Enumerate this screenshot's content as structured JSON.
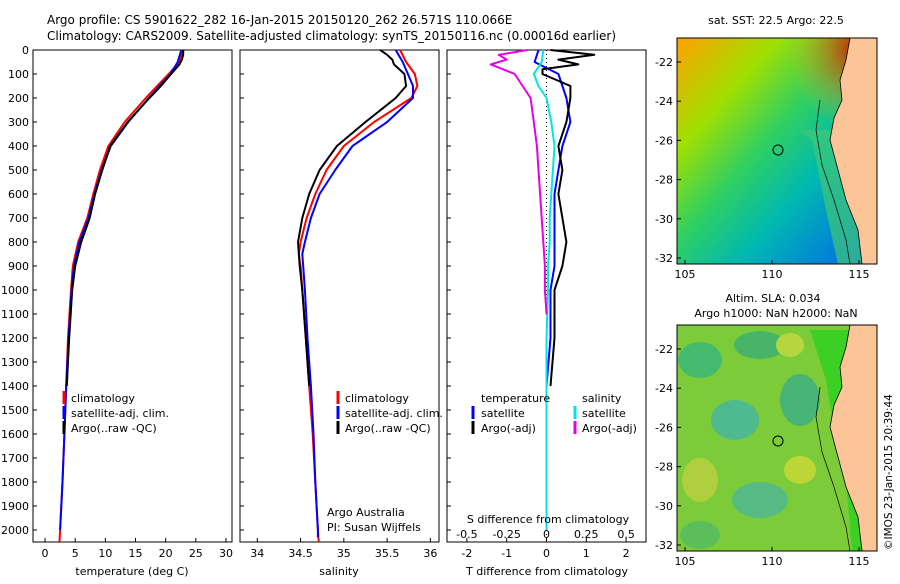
{
  "header": {
    "line1": "Argo profile: CS 5901622_282 16-Jan-2015 20150120_262 26.571S 110.066E",
    "line2": "Climatology: CARS2009. Satellite-adjusted climatology: synTS_20150116.nc (0.00016d earlier)"
  },
  "credit": "©IMOS 23-Jan-2015 20:39:44",
  "colors": {
    "climatology": "#ff0000",
    "satellite": "#0000ff",
    "argo": "#000000",
    "sal_satellite": "#00e5e5",
    "sal_argo": "#e600e6",
    "land": "#fbc597"
  },
  "legend": {
    "climatology": "climatology",
    "satellite_adj": "satellite-adj. clim.",
    "argo_raw": "Argo(..raw -QC)",
    "temperature_head": "temperature",
    "salinity_head": "salinity",
    "satellite": "satellite",
    "argo_adj": "Argo(-adj)"
  },
  "notes": {
    "institution": "Argo Australia",
    "pi": "PI: Susan Wijffels"
  },
  "maps": {
    "sst_title": "sat. SST: 22.5  Argo: 22.5",
    "sla_title_1": "Altim. SLA: 0.034",
    "sla_title_2": "Argo h1000: NaN h2000: NaN",
    "lon_ticks": [
      "105",
      "110",
      "115"
    ],
    "lat_ticks": [
      "-22",
      "-24",
      "-26",
      "-28",
      "-30",
      "-32"
    ],
    "profile_location": {
      "lon": 110.066,
      "lat": -26.571
    }
  },
  "chart_data": [
    {
      "type": "line",
      "panel": "temperature",
      "xlabel": "temperature (deg C)",
      "xlim": [
        -2,
        31
      ],
      "xticks": [
        "0",
        "5",
        "10",
        "15",
        "20",
        "25",
        "30"
      ],
      "ylim": [
        0,
        2050
      ],
      "yticks": [
        "0",
        "100",
        "200",
        "300",
        "400",
        "500",
        "600",
        "700",
        "800",
        "900",
        "1000",
        "1100",
        "1200",
        "1300",
        "1400",
        "1500",
        "1600",
        "1700",
        "1800",
        "1900",
        "2000"
      ],
      "grid": false,
      "series": [
        {
          "name": "climatology",
          "color": "#ff0000",
          "depth": [
            0,
            50,
            100,
            150,
            200,
            300,
            400,
            500,
            600,
            700,
            800,
            900,
            1000,
            1200,
            1400,
            1600,
            1800,
            2000,
            2050
          ],
          "values": [
            22.8,
            22.3,
            20.5,
            18.6,
            16.7,
            13.2,
            10.5,
            9.1,
            8.0,
            7.0,
            5.5,
            4.6,
            4.3,
            3.8,
            3.5,
            3.2,
            2.9,
            2.5,
            2.4
          ]
        },
        {
          "name": "satellite-adj. clim.",
          "color": "#0000ff",
          "depth": [
            0,
            50,
            100,
            150,
            200,
            300,
            400,
            500,
            600,
            700,
            800,
            900,
            1000,
            1200,
            1400,
            1600,
            1800,
            2000
          ],
          "values": [
            22.6,
            22.0,
            20.8,
            19.0,
            17.2,
            13.8,
            10.9,
            9.4,
            8.2,
            7.2,
            5.7,
            4.8,
            4.4,
            3.9,
            3.5,
            3.2,
            2.9,
            2.5
          ]
        },
        {
          "name": "Argo(..raw -QC)",
          "color": "#000000",
          "depth": [
            0,
            20,
            40,
            60,
            100,
            150,
            200,
            300,
            400,
            500,
            600,
            700,
            800,
            900,
            1000,
            1200,
            1400
          ],
          "values": [
            22.9,
            22.9,
            22.7,
            22.3,
            20.9,
            19.2,
            17.3,
            13.7,
            10.8,
            9.5,
            8.3,
            7.4,
            6.0,
            5.0,
            4.5,
            4.0,
            3.6
          ]
        }
      ]
    },
    {
      "type": "line",
      "panel": "salinity",
      "xlabel": "salinity",
      "xlim": [
        33.8,
        36.1
      ],
      "xticks": [
        "34",
        "34.5",
        "35",
        "35.5",
        "36"
      ],
      "ylim": [
        0,
        2050
      ],
      "grid": false,
      "series": [
        {
          "name": "climatology",
          "color": "#ff0000",
          "depth": [
            0,
            50,
            100,
            150,
            200,
            300,
            400,
            500,
            600,
            700,
            800,
            850,
            900,
            1000,
            1200,
            1400,
            1600,
            1800,
            2000,
            2050
          ],
          "values": [
            35.65,
            35.72,
            35.82,
            35.85,
            35.78,
            35.35,
            35.0,
            34.8,
            34.67,
            34.57,
            34.5,
            34.48,
            34.5,
            34.52,
            34.56,
            34.6,
            34.64,
            34.67,
            34.7,
            34.71
          ]
        },
        {
          "name": "satellite-adj. clim.",
          "color": "#0000ff",
          "depth": [
            0,
            50,
            100,
            150,
            200,
            300,
            400,
            500,
            600,
            700,
            800,
            850,
            900,
            1000,
            1200,
            1400,
            1600,
            1800,
            2000,
            2030
          ],
          "values": [
            35.6,
            35.68,
            35.74,
            35.8,
            35.8,
            35.5,
            35.1,
            34.9,
            34.72,
            34.62,
            34.55,
            34.52,
            34.53,
            34.55,
            34.58,
            34.62,
            34.65,
            34.67,
            34.7,
            34.7
          ]
        },
        {
          "name": "Argo(..raw -QC)",
          "color": "#000000",
          "depth": [
            0,
            20,
            40,
            60,
            100,
            150,
            200,
            300,
            400,
            500,
            600,
            700,
            800,
            900,
            1000,
            1200,
            1400
          ],
          "values": [
            35.42,
            35.5,
            35.56,
            35.58,
            35.7,
            35.72,
            35.6,
            35.25,
            34.92,
            34.72,
            34.6,
            34.52,
            34.47,
            34.49,
            34.52,
            34.56,
            34.6
          ]
        }
      ]
    },
    {
      "type": "line",
      "panel": "differences",
      "xlabel": "T difference from climatology",
      "xlabel_top": "S difference from climatology",
      "xlim": [
        -2.5,
        2.5
      ],
      "xticks": [
        "-2",
        "-1",
        "0",
        "1",
        "2"
      ],
      "xticks_top": [
        "-0.5",
        "-0.25",
        "0",
        "0.25",
        "0.5"
      ],
      "ylim": [
        0,
        2050
      ],
      "series": [
        {
          "name": "temperature satellite",
          "color": "#0000ff",
          "depth": [
            0,
            50,
            100,
            150,
            200,
            300,
            400,
            500,
            600,
            700,
            800,
            900,
            1000,
            1200,
            1400,
            1600,
            1800,
            2000
          ],
          "values": [
            -0.2,
            -0.3,
            0.3,
            0.4,
            0.5,
            0.6,
            0.4,
            0.3,
            0.2,
            0.2,
            0.2,
            0.2,
            0.1,
            0.1,
            0.0,
            0.0,
            0.0,
            0.0
          ]
        },
        {
          "name": "temperature Argo(-adj)",
          "color": "#000000",
          "depth": [
            0,
            20,
            40,
            60,
            80,
            100,
            150,
            200,
            300,
            400,
            500,
            600,
            700,
            800,
            900,
            1000,
            1200,
            1400
          ],
          "values": [
            0.1,
            1.2,
            0.3,
            0.8,
            -0.1,
            -0.1,
            0.6,
            0.6,
            0.5,
            0.3,
            0.4,
            0.3,
            0.4,
            0.5,
            0.4,
            0.2,
            0.2,
            0.1
          ]
        },
        {
          "name": "salinity satellite",
          "color": "#00e5e5",
          "depth": [
            0,
            50,
            100,
            150,
            200,
            300,
            400,
            500,
            600,
            700,
            800,
            900,
            1000,
            1200,
            1400,
            1600,
            1800,
            2000
          ],
          "values": [
            -0.02,
            -0.03,
            -0.08,
            -0.05,
            0.0,
            0.03,
            0.05,
            0.04,
            0.03,
            0.02,
            0.02,
            0.01,
            0.01,
            0.0,
            0.0,
            0.0,
            0.0,
            0.0
          ]
        },
        {
          "name": "salinity Argo(-adj)",
          "color": "#e600e6",
          "depth": [
            0,
            20,
            40,
            60,
            100,
            150,
            200,
            300,
            400,
            500,
            600,
            700,
            800,
            900,
            1000,
            1100
          ],
          "values": [
            -0.12,
            -0.3,
            -0.25,
            -0.35,
            -0.2,
            -0.15,
            -0.1,
            -0.08,
            -0.06,
            -0.05,
            -0.04,
            -0.03,
            -0.02,
            -0.01,
            -0.01,
            0.0
          ]
        }
      ]
    }
  ]
}
